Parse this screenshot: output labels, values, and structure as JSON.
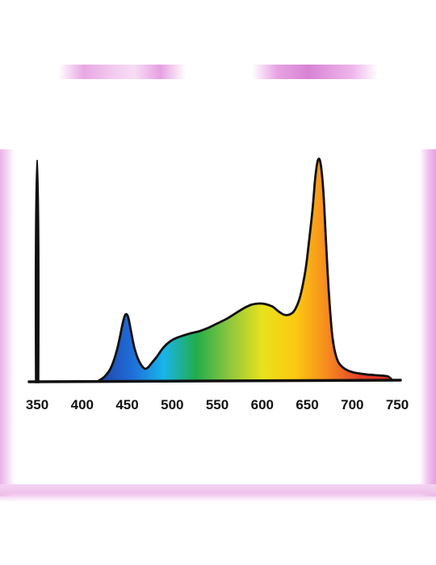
{
  "chart_data": {
    "type": "area",
    "xlim": [
      350,
      750
    ],
    "ylim": [
      0,
      1
    ],
    "xticks": [
      "350",
      "400",
      "450",
      "500",
      "550",
      "600",
      "650",
      "700",
      "750"
    ],
    "legend": "none",
    "grid": false,
    "x": [
      418,
      425,
      432,
      438,
      442,
      445,
      448,
      451,
      454,
      458,
      462,
      466,
      470,
      474,
      478,
      483,
      490,
      498,
      505,
      512,
      520,
      530,
      540,
      550,
      560,
      570,
      580,
      588,
      595,
      600,
      606,
      612,
      618,
      624,
      630,
      636,
      642,
      648,
      652,
      656,
      659,
      662,
      665,
      668,
      671,
      674,
      678,
      683,
      690,
      700,
      715,
      730,
      740,
      745
    ],
    "values": [
      0.0,
      0.02,
      0.06,
      0.13,
      0.2,
      0.26,
      0.3,
      0.29,
      0.23,
      0.15,
      0.1,
      0.07,
      0.055,
      0.065,
      0.085,
      0.11,
      0.15,
      0.18,
      0.195,
      0.205,
      0.215,
      0.225,
      0.24,
      0.26,
      0.28,
      0.305,
      0.33,
      0.345,
      0.35,
      0.35,
      0.345,
      0.335,
      0.315,
      0.3,
      0.3,
      0.32,
      0.38,
      0.5,
      0.63,
      0.78,
      0.92,
      1.0,
      0.98,
      0.85,
      0.62,
      0.4,
      0.2,
      0.1,
      0.06,
      0.04,
      0.03,
      0.025,
      0.02,
      0.0
    ],
    "spectrum_colors": [
      "#2244a8",
      "#1f6cd6",
      "#19b4ea",
      "#22ad4a",
      "#8cc63e",
      "#e8e21c",
      "#fcca10",
      "#f68a1e",
      "#e5412a",
      "#ea2d25"
    ]
  }
}
